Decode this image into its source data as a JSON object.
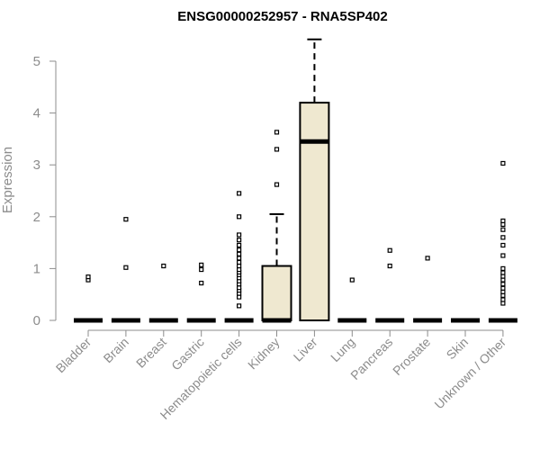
{
  "chart_data": {
    "type": "box",
    "title": "ENSG00000252957 - RNA5SP402",
    "xlabel": "",
    "ylabel": "Expression",
    "ylim": [
      0,
      5.5
    ],
    "yticks": [
      "0",
      "1",
      "2",
      "3",
      "4",
      "5"
    ],
    "box_fill": "#efe8d0",
    "categories": [
      {
        "name": "Bladder",
        "median": 0,
        "q1": 0,
        "q3": 0,
        "whisker_low": 0,
        "whisker_high": 0,
        "outliers": [
          0.78,
          0.84
        ]
      },
      {
        "name": "Brain",
        "median": 0,
        "q1": 0,
        "q3": 0,
        "whisker_low": 0,
        "whisker_high": 0,
        "outliers": [
          1.02,
          1.95
        ]
      },
      {
        "name": "Breast",
        "median": 0,
        "q1": 0,
        "q3": 0,
        "whisker_low": 0,
        "whisker_high": 0,
        "outliers": [
          1.05
        ]
      },
      {
        "name": "Gastric",
        "median": 0,
        "q1": 0,
        "q3": 0,
        "whisker_low": 0,
        "whisker_high": 0,
        "outliers": [
          0.72,
          0.98,
          1.07
        ]
      },
      {
        "name": "Hematopoietic cells",
        "median": 0,
        "q1": 0,
        "q3": 0,
        "whisker_low": 0,
        "whisker_high": 0,
        "outliers": [
          0.28,
          0.45,
          0.52,
          0.58,
          0.63,
          0.7,
          0.76,
          0.82,
          0.88,
          0.93,
          0.98,
          1.05,
          1.12,
          1.2,
          1.28,
          1.36,
          1.45,
          1.55,
          1.65,
          2.0,
          2.45
        ]
      },
      {
        "name": "Kidney",
        "median": 0,
        "q1": 0,
        "q3": 1.05,
        "whisker_low": 0,
        "whisker_high": 2.05,
        "outliers": [
          2.62,
          3.3,
          3.63
        ]
      },
      {
        "name": "Liver",
        "median": 3.45,
        "q1": 0,
        "q3": 4.2,
        "whisker_low": 0,
        "whisker_high": 5.42,
        "outliers": []
      },
      {
        "name": "Lung",
        "median": 0,
        "q1": 0,
        "q3": 0,
        "whisker_low": 0,
        "whisker_high": 0,
        "outliers": [
          0.78
        ]
      },
      {
        "name": "Pancreas",
        "median": 0,
        "q1": 0,
        "q3": 0,
        "whisker_low": 0,
        "whisker_high": 0,
        "outliers": [
          1.05,
          1.35
        ]
      },
      {
        "name": "Prostate",
        "median": 0,
        "q1": 0,
        "q3": 0,
        "whisker_low": 0,
        "whisker_high": 0,
        "outliers": [
          1.2
        ]
      },
      {
        "name": "Skin",
        "median": 0,
        "q1": 0,
        "q3": 0,
        "whisker_low": 0,
        "whisker_high": 0,
        "outliers": []
      },
      {
        "name": "Unknown / Other",
        "median": 0,
        "q1": 0,
        "q3": 0,
        "whisker_low": 0,
        "whisker_high": 0,
        "outliers": [
          0.33,
          0.4,
          0.48,
          0.55,
          0.62,
          0.7,
          0.78,
          0.85,
          0.92,
          1.0,
          1.25,
          1.45,
          1.6,
          1.75,
          1.85,
          1.92,
          3.03
        ]
      }
    ]
  }
}
